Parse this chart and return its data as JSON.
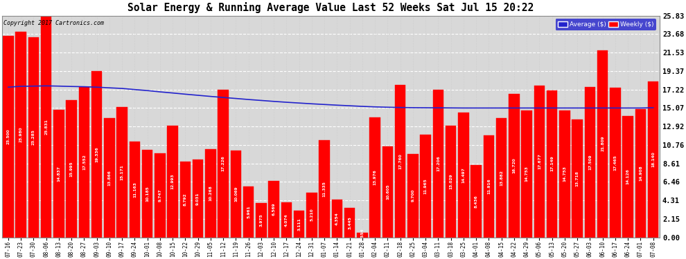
{
  "title": "Solar Energy & Running Average Value Last 52 Weeks Sat Jul 15 20:22",
  "copyright": "Copyright 2017 Cartronics.com",
  "ylabel_right_values": [
    0.0,
    2.15,
    4.31,
    6.46,
    8.61,
    10.76,
    12.92,
    15.07,
    17.22,
    19.37,
    21.53,
    23.68,
    25.83
  ],
  "bar_color": "#ff0000",
  "avg_line_color": "#2222cc",
  "background_color": "#ffffff",
  "plot_bg_color": "#ffffff",
  "grid_color": "#aaaaaa",
  "categories": [
    "07-16",
    "07-23",
    "07-30",
    "08-06",
    "08-13",
    "08-20",
    "08-27",
    "09-03",
    "09-10",
    "09-17",
    "09-24",
    "10-01",
    "10-08",
    "10-15",
    "10-22",
    "10-29",
    "11-05",
    "11-12",
    "11-19",
    "11-26",
    "12-03",
    "12-10",
    "12-17",
    "12-24",
    "12-31",
    "01-07",
    "01-14",
    "01-21",
    "01-28",
    "02-04",
    "02-11",
    "02-18",
    "02-25",
    "03-04",
    "03-11",
    "03-18",
    "03-25",
    "04-01",
    "04-08",
    "04-15",
    "04-22",
    "04-29",
    "05-06",
    "05-13",
    "05-20",
    "05-27",
    "06-03",
    "06-10",
    "06-17",
    "06-24",
    "07-01",
    "07-08"
  ],
  "weekly_values": [
    23.5,
    23.98,
    23.285,
    25.831,
    14.837,
    15.995,
    17.552,
    19.336,
    13.866,
    15.171,
    11.163,
    10.185,
    9.747,
    12.993,
    8.792,
    9.031,
    10.268,
    17.226,
    10.069,
    5.961,
    3.975,
    6.569,
    4.074,
    3.111,
    5.21,
    11.335,
    4.354,
    3.445,
    0.554,
    13.976,
    10.605,
    17.76,
    9.7,
    11.965,
    17.206,
    13.029,
    14.497,
    8.436,
    11.916,
    13.882,
    16.72,
    14.753,
    17.677,
    17.149,
    14.753,
    13.718,
    17.509,
    21.809,
    17.465,
    14.126,
    14.908,
    18.14
  ],
  "avg_values": [
    17.5,
    17.6,
    17.62,
    17.65,
    17.62,
    17.58,
    17.55,
    17.5,
    17.42,
    17.35,
    17.22,
    17.1,
    16.95,
    16.82,
    16.68,
    16.55,
    16.42,
    16.3,
    16.18,
    16.06,
    15.95,
    15.84,
    15.74,
    15.65,
    15.56,
    15.48,
    15.4,
    15.33,
    15.26,
    15.2,
    15.16,
    15.13,
    15.11,
    15.1,
    15.09,
    15.08,
    15.07,
    15.07,
    15.07,
    15.07,
    15.07,
    15.07,
    15.07,
    15.07,
    15.07,
    15.07,
    15.07,
    15.07,
    15.07,
    15.07,
    15.07,
    15.1
  ],
  "ymax": 25.83,
  "ymin": 0.0
}
